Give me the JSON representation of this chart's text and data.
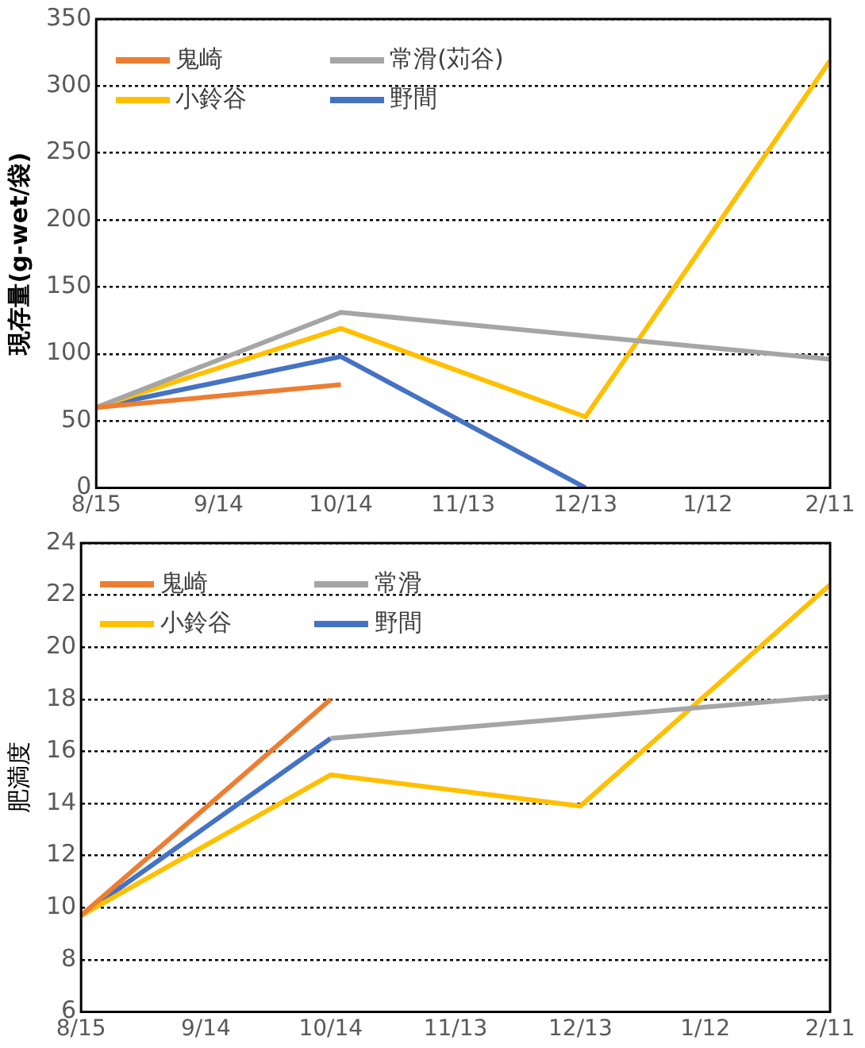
{
  "chart_data": [
    {
      "type": "line",
      "ylabel": "現存量(g-wet/袋)",
      "categories": [
        "8/15",
        "9/14",
        "10/14",
        "11/13",
        "12/13",
        "1/12",
        "2/11"
      ],
      "series": [
        {
          "name": "鬼崎",
          "color": "#ed7d31",
          "values": [
            60,
            null,
            77,
            null,
            null,
            null,
            null
          ]
        },
        {
          "name": "常滑(苅谷)",
          "color": "#a5a5a5",
          "values": [
            60,
            null,
            131,
            null,
            null,
            null,
            96
          ]
        },
        {
          "name": "小鈴谷",
          "color": "#ffc000",
          "values": [
            60,
            null,
            119,
            null,
            53,
            null,
            319
          ]
        },
        {
          "name": "野間",
          "color": "#4472c4",
          "values": [
            60,
            null,
            98,
            null,
            0,
            null,
            null
          ]
        }
      ],
      "ylim": [
        0,
        350
      ],
      "yticks": [
        0,
        50,
        100,
        150,
        200,
        250,
        300,
        350
      ],
      "grid": "y",
      "legend": "top left",
      "marker": "none",
      "line_style": "solid"
    },
    {
      "type": "line",
      "ylabel": "肥満度",
      "categories": [
        "8/15",
        "9/14",
        "10/14",
        "11/13",
        "12/13",
        "1/12",
        "2/11"
      ],
      "series": [
        {
          "name": "鬼崎",
          "color": "#ed7d31",
          "values": [
            9.7,
            null,
            18.0,
            null,
            null,
            null,
            null
          ]
        },
        {
          "name": "常滑",
          "color": "#a5a5a5",
          "values": [
            null,
            null,
            16.5,
            null,
            null,
            null,
            18.1
          ]
        },
        {
          "name": "小鈴谷",
          "color": "#ffc000",
          "values": [
            9.7,
            null,
            15.1,
            null,
            13.9,
            null,
            22.4
          ]
        },
        {
          "name": "野間",
          "color": "#4472c4",
          "values": [
            9.7,
            null,
            16.5,
            null,
            null,
            null,
            null
          ]
        }
      ],
      "ylim": [
        6,
        24
      ],
      "yticks": [
        6,
        8,
        10,
        12,
        14,
        16,
        18,
        20,
        22,
        24
      ],
      "grid": "y",
      "legend": "top left",
      "marker": "none",
      "line_style": "solid"
    }
  ]
}
